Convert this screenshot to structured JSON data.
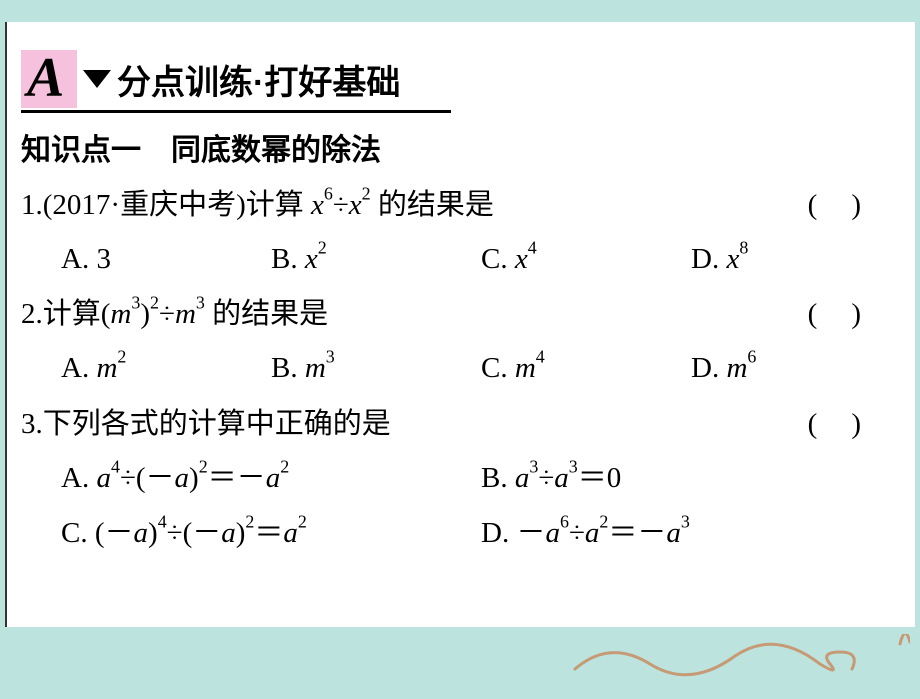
{
  "colors": {
    "page_bg": "#bde3df",
    "paper_bg": "#ffffff",
    "badge_bg": "#f5c1dd",
    "text": "#000000",
    "sketch_stroke": "#c59a74"
  },
  "typography": {
    "body_fontsize": 29,
    "heading_fontsize": 30,
    "section_title_fontsize": 34,
    "badge_letter_fontsize": 56
  },
  "header": {
    "badge_letter": "A",
    "section_title": "分点训练·打好基础"
  },
  "knowledge_point": {
    "label": "知识点一",
    "title": "同底数幂的除法"
  },
  "questions": [
    {
      "number": "1.",
      "meta": "(2017·重庆中考)",
      "stem_pre": "计算 ",
      "stem_expr_html": "<span class=\"math\">x</span><sup>6</sup>÷<span class=\"math\">x</span><sup>2</sup>",
      "stem_post": " 的结果是",
      "option_layout": "4col",
      "options": [
        {
          "label": "A.",
          "html": "3"
        },
        {
          "label": "B.",
          "html": "<span class=\"math\">x</span><sup>2</sup>"
        },
        {
          "label": "C.",
          "html": "<span class=\"math\">x</span><sup>4</sup>"
        },
        {
          "label": "D.",
          "html": "<span class=\"math\">x</span><sup>8</sup>"
        }
      ]
    },
    {
      "number": "2.",
      "meta": "",
      "stem_pre": "计算",
      "stem_expr_html": "(<span class=\"math\">m</span><sup>3</sup>)<sup>2</sup>÷<span class=\"math\">m</span><sup>3</sup>",
      "stem_post": " 的结果是",
      "option_layout": "4col",
      "options": [
        {
          "label": "A.",
          "html": "<span class=\"math\">m</span><sup>2</sup>"
        },
        {
          "label": "B.",
          "html": "<span class=\"math\">m</span><sup>3</sup>"
        },
        {
          "label": "C.",
          "html": "<span class=\"math\">m</span><sup>4</sup>"
        },
        {
          "label": "D.",
          "html": "<span class=\"math\">m</span><sup>6</sup>"
        }
      ]
    },
    {
      "number": "3.",
      "meta": "",
      "stem_pre": "下列各式的计算中正确的是",
      "stem_expr_html": "",
      "stem_post": "",
      "option_layout": "2col",
      "options": [
        {
          "label": "A.",
          "html": "<span class=\"math\">a</span><sup>4</sup>÷(－<span class=\"math\">a</span>)<sup>2</sup>＝－<span class=\"math\">a</span><sup>2</sup>"
        },
        {
          "label": "B.",
          "html": "<span class=\"math\">a</span><sup>3</sup>÷<span class=\"math\">a</span><sup>3</sup>＝0"
        },
        {
          "label": "C.",
          "html": "(－<span class=\"math\">a</span>)<sup>4</sup>÷(－<span class=\"math\">a</span>)<sup>2</sup>＝<span class=\"math\">a</span><sup>2</sup>"
        },
        {
          "label": "D.",
          "html": "－<span class=\"math\">a</span><sup>6</sup>÷<span class=\"math\">a</span><sup>2</sup>＝－<span class=\"math\">a</span><sup>3</sup>"
        }
      ]
    }
  ]
}
